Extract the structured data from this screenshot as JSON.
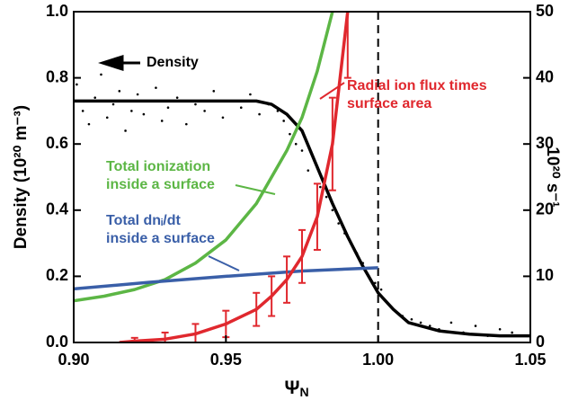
{
  "chart_data": {
    "type": "line",
    "ylabel": "Density (10²⁰ m⁻³)",
    "y2label": "10²⁰ s⁻¹",
    "xlabel": "Ψ",
    "xlabel_subscript": "N",
    "xlim": [
      0.9,
      1.05
    ],
    "xticks": [
      {
        "value": 0.9,
        "label": "0.90"
      },
      {
        "value": 0.95,
        "label": "0.95"
      },
      {
        "value": 1.0,
        "label": "1.00"
      },
      {
        "value": 1.05,
        "label": "1.05"
      }
    ],
    "ylim": [
      0,
      1
    ],
    "yticks": [
      {
        "value": 0,
        "label": "0.0"
      },
      0.2,
      0.4,
      0.6,
      0.8,
      {
        "value": 1,
        "label": "1.0"
      }
    ],
    "y2lim": [
      0,
      50
    ],
    "y2ticks": [
      0,
      10,
      20,
      30,
      40,
      50
    ],
    "vline": 1.0,
    "scatter": {
      "color": "#000000",
      "x": [
        0.901,
        0.903,
        0.905,
        0.907,
        0.909,
        0.911,
        0.913,
        0.915,
        0.917,
        0.919,
        0.921,
        0.923,
        0.925,
        0.927,
        0.929,
        0.931,
        0.934,
        0.937,
        0.94,
        0.943,
        0.946,
        0.949,
        0.952,
        0.955,
        0.958,
        0.961,
        0.964,
        0.967,
        0.969,
        0.971,
        0.973,
        0.975,
        0.977,
        0.979,
        0.981,
        0.983,
        0.985,
        0.987,
        0.989,
        0.991,
        0.993,
        0.995,
        0.997,
        0.999,
        1.001,
        1.003,
        1.005,
        1.008,
        1.011,
        1.014,
        1.017,
        1.02,
        1.024,
        1.028,
        1.032,
        1.036,
        1.04,
        1.044,
        1.048
      ],
      "values": [
        0.78,
        0.7,
        0.66,
        0.74,
        0.81,
        0.68,
        0.72,
        0.76,
        0.64,
        0.7,
        0.75,
        0.69,
        0.73,
        0.77,
        0.67,
        0.71,
        0.74,
        0.66,
        0.72,
        0.7,
        0.76,
        0.68,
        0.73,
        0.71,
        0.75,
        0.69,
        0.72,
        0.7,
        0.67,
        0.63,
        0.6,
        0.58,
        0.52,
        0.55,
        0.47,
        0.44,
        0.4,
        0.36,
        0.33,
        0.3,
        0.27,
        0.24,
        0.2,
        0.18,
        0.16,
        0.12,
        0.1,
        0.08,
        0.07,
        0.06,
        0.05,
        0.04,
        0.06,
        0.03,
        0.05,
        0.02,
        0.04,
        0.03,
        0.02
      ]
    },
    "series": [
      {
        "color": "#000000",
        "axis": "y",
        "x": [
          0.9,
          0.96,
          0.965,
          0.97,
          0.975,
          0.98,
          0.985,
          0.99,
          0.995,
          1.0,
          1.005,
          1.01,
          1.02,
          1.03,
          1.04,
          1.05
        ],
        "values": [
          0.73,
          0.73,
          0.72,
          0.69,
          0.64,
          0.53,
          0.42,
          0.32,
          0.23,
          0.15,
          0.1,
          0.06,
          0.035,
          0.025,
          0.02,
          0.02
        ]
      },
      {
        "color": "#5cb645",
        "axis": "y2",
        "x": [
          0.9,
          0.91,
          0.92,
          0.93,
          0.94,
          0.95,
          0.96,
          0.97,
          0.975,
          0.98,
          0.985
        ],
        "values": [
          6.3,
          7,
          8,
          9.5,
          12,
          15.5,
          21,
          29,
          34,
          41,
          50
        ]
      },
      {
        "color": "#3a5fa8",
        "axis": "y2",
        "x": [
          0.9,
          0.925,
          0.95,
          0.975,
          1.0
        ],
        "values": [
          8.1,
          9.1,
          10,
          10.8,
          11.3
        ]
      },
      {
        "color": "#e0282e",
        "axis": "y2",
        "x": [
          0.915,
          0.92,
          0.93,
          0.94,
          0.95,
          0.96,
          0.965,
          0.97,
          0.975,
          0.98,
          0.985,
          0.99
        ],
        "values": [
          0,
          0.2,
          0.5,
          1.3,
          2.8,
          5,
          7,
          9.5,
          13,
          19,
          30,
          50
        ],
        "errors": [
          0,
          0.5,
          1,
          1.5,
          2,
          2.5,
          3,
          3.5,
          4,
          5,
          7,
          10
        ]
      }
    ],
    "annotations": [
      {
        "lines": [
          "Density"
        ],
        "color": "#000000"
      },
      {
        "lines": [
          "Radial ion flux times",
          "surface area"
        ],
        "color": "#e0282e"
      },
      {
        "lines": [
          "Total ionization",
          "inside a surface"
        ],
        "color": "#5cb645"
      },
      {
        "lines": [
          "Total dnᵢ/dt",
          "inside a surface"
        ],
        "color": "#3a5fa8"
      }
    ]
  }
}
